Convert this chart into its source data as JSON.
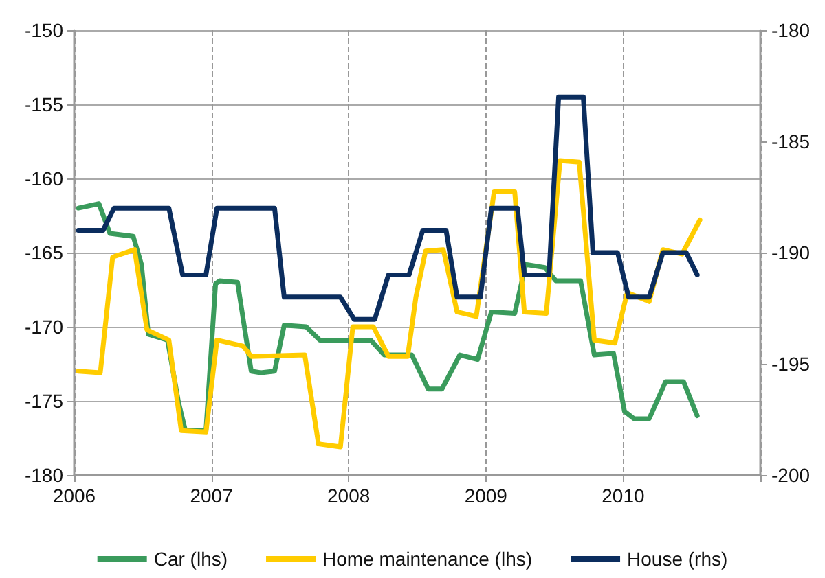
{
  "chart_data": {
    "type": "line",
    "xlim": [
      2006,
      2011
    ],
    "xticks": [
      2006,
      2007,
      2008,
      2009,
      2010,
      {
        "value": 2011,
        "label": null
      }
    ],
    "ylim": [
      -180,
      -150
    ],
    "yticks": [
      -180,
      -175,
      -170,
      -165,
      -160,
      -155,
      -150
    ],
    "y2lim": [
      -200,
      -180
    ],
    "y2ticks": [
      -200,
      -195,
      -190,
      -185,
      -180
    ],
    "grid": true,
    "legend": "bottom",
    "marker": "none",
    "line_style": "solid",
    "series": [
      {
        "name": "Car (lhs)",
        "color": "#3a9b5c",
        "x": [
          2006.03,
          2006.18,
          2006.26,
          2006.43,
          2006.49,
          2006.54,
          2006.68,
          2006.76,
          2006.81,
          2006.96,
          2007.03,
          2007.06,
          2007.19,
          2007.29,
          2007.36,
          2007.46,
          2007.53,
          2007.69,
          2007.79,
          2008.16,
          2008.26,
          2008.46,
          2008.58,
          2008.68,
          2008.81,
          2008.94,
          2009.04,
          2009.21,
          2009.29,
          2009.43,
          2009.51,
          2009.69,
          2009.79,
          2009.93,
          2010.01,
          2010.08,
          2010.19,
          2010.31,
          2010.44,
          2010.54
        ],
        "values": [
          -162.0,
          -161.7,
          -163.7,
          -163.9,
          -165.8,
          -170.5,
          -170.9,
          -175.1,
          -177.0,
          -177.0,
          -167.1,
          -166.9,
          -167.0,
          -173.0,
          -173.1,
          -173.0,
          -169.9,
          -170.0,
          -170.9,
          -170.9,
          -171.9,
          -171.9,
          -174.2,
          -174.2,
          -171.9,
          -172.2,
          -169.0,
          -169.1,
          -165.8,
          -166.0,
          -166.9,
          -166.9,
          -171.9,
          -171.8,
          -175.7,
          -176.2,
          -176.2,
          -173.7,
          -173.7,
          -176.0
        ]
      },
      {
        "name": "Home maintenance (lhs)",
        "color": "#ffcc00",
        "x": [
          2006.03,
          2006.19,
          2006.28,
          2006.44,
          2006.53,
          2006.69,
          2006.78,
          2006.96,
          2007.04,
          2007.23,
          2007.29,
          2007.68,
          2007.78,
          2007.94,
          2008.03,
          2008.18,
          2008.29,
          2008.43,
          2008.49,
          2008.56,
          2008.69,
          2008.79,
          2008.93,
          2009.06,
          2009.21,
          2009.28,
          2009.44,
          2009.54,
          2009.68,
          2009.79,
          2009.94,
          2010.03,
          2010.19,
          2010.29,
          2010.43,
          2010.56
        ],
        "values": [
          -173.0,
          -173.1,
          -165.3,
          -164.8,
          -170.2,
          -170.9,
          -177.0,
          -177.1,
          -170.9,
          -171.3,
          -172.0,
          -171.9,
          -177.9,
          -178.1,
          -170.0,
          -170.0,
          -172.0,
          -172.0,
          -168.0,
          -164.9,
          -164.8,
          -169.0,
          -169.3,
          -160.9,
          -160.9,
          -169.0,
          -169.1,
          -158.8,
          -158.9,
          -170.9,
          -171.1,
          -167.7,
          -168.3,
          -164.8,
          -165.1,
          -162.8
        ]
      },
      {
        "name": "House (rhs)",
        "color": "#0b2d5e",
        "axis": "y2",
        "x": [
          2006.03,
          2006.21,
          2006.29,
          2006.69,
          2006.79,
          2006.96,
          2007.04,
          2007.46,
          2007.53,
          2007.94,
          2008.04,
          2008.19,
          2008.29,
          2008.44,
          2008.54,
          2008.71,
          2008.79,
          2008.96,
          2009.04,
          2009.23,
          2009.28,
          2009.46,
          2009.53,
          2009.71,
          2009.78,
          2009.96,
          2010.04,
          2010.19,
          2010.29,
          2010.46,
          2010.54
        ],
        "values": [
          -189,
          -189,
          -188,
          -188,
          -191,
          -191,
          -188,
          -188,
          -192,
          -192,
          -193,
          -193,
          -191,
          -191,
          -189,
          -189,
          -192,
          -192,
          -188,
          -188,
          -191,
          -191,
          -183,
          -183,
          -190,
          -190,
          -192,
          -192,
          -190,
          -190,
          -191
        ]
      }
    ]
  }
}
